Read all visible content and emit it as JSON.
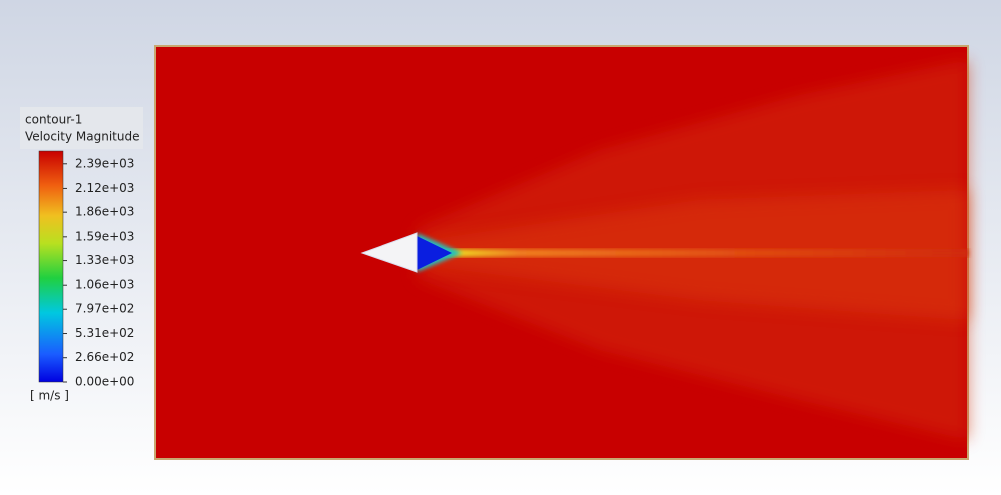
{
  "legend": {
    "name": "contour-1",
    "variable": "Velocity Magnitude",
    "unit": "[ m/s ]",
    "clim": [
      0,
      2530
    ],
    "ticks": [
      {
        "value": 2390,
        "label": "2.39e+03"
      },
      {
        "value": 2120,
        "label": "2.12e+03"
      },
      {
        "value": 1860,
        "label": "1.86e+03"
      },
      {
        "value": 1590,
        "label": "1.59e+03"
      },
      {
        "value": 1330,
        "label": "1.33e+03"
      },
      {
        "value": 1060,
        "label": "1.06e+03"
      },
      {
        "value": 797,
        "label": "7.97e+02"
      },
      {
        "value": 531,
        "label": "5.31e+02"
      },
      {
        "value": 266,
        "label": "2.66e+02"
      },
      {
        "value": 0,
        "label": "0.00e+00"
      }
    ]
  }
}
